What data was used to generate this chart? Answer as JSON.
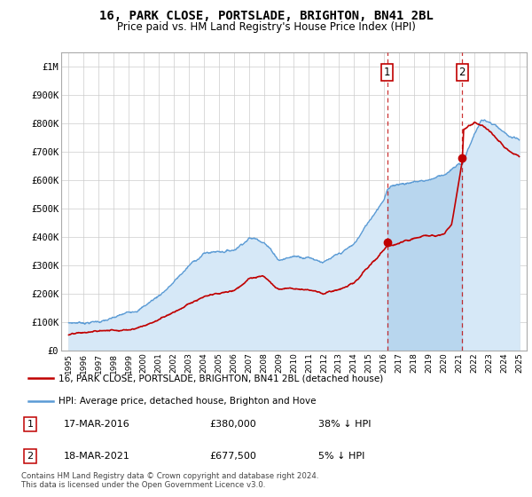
{
  "title": "16, PARK CLOSE, PORTSLADE, BRIGHTON, BN41 2BL",
  "subtitle": "Price paid vs. HM Land Registry's House Price Index (HPI)",
  "ylim": [
    0,
    1050000
  ],
  "yticks": [
    0,
    100000,
    200000,
    300000,
    400000,
    500000,
    600000,
    700000,
    800000,
    900000,
    1000000
  ],
  "ytick_labels": [
    "£0",
    "£100K",
    "£200K",
    "£300K",
    "£400K",
    "£500K",
    "£600K",
    "£700K",
    "£800K",
    "£900K",
    "£1M"
  ],
  "hpi_color": "#5b9bd5",
  "hpi_fill_color": "#d6e8f7",
  "price_color": "#c00000",
  "marker1_date": 2016.21,
  "marker1_price": 380000,
  "marker1_label": "17-MAR-2016",
  "marker1_amount": "£380,000",
  "marker1_pct": "38% ↓ HPI",
  "marker2_date": 2021.21,
  "marker2_price": 677500,
  "marker2_label": "18-MAR-2021",
  "marker2_amount": "£677,500",
  "marker2_pct": "5% ↓ HPI",
  "footer": "Contains HM Land Registry data © Crown copyright and database right 2024.\nThis data is licensed under the Open Government Licence v3.0.",
  "legend_price": "16, PARK CLOSE, PORTSLADE, BRIGHTON, BN41 2BL (detached house)",
  "legend_hpi": "HPI: Average price, detached house, Brighton and Hove",
  "background_color": "#ffffff",
  "grid_color": "#cccccc",
  "hpi_key_years": [
    1995,
    1996,
    1997,
    1998,
    1999,
    2000,
    2001,
    2002,
    2003,
    2004,
    2005,
    2006,
    2007,
    2008,
    2009,
    2010,
    2011,
    2012,
    2013,
    2014,
    2015,
    2016,
    2016.21,
    2017,
    2018,
    2019,
    2020,
    2021,
    2021.21,
    2022,
    2022.5,
    2023,
    2023.5,
    2024,
    2024.5,
    2025
  ],
  "hpi_key_vals": [
    95000,
    100000,
    107000,
    115000,
    130000,
    160000,
    200000,
    250000,
    305000,
    350000,
    360000,
    370000,
    420000,
    415000,
    355000,
    370000,
    375000,
    365000,
    380000,
    410000,
    490000,
    580000,
    612903,
    635000,
    645000,
    655000,
    680000,
    710000,
    713158,
    820000,
    870000,
    860000,
    840000,
    810000,
    790000,
    775000
  ],
  "price_key_years": [
    1995,
    1996,
    1997,
    1998,
    1999,
    2000,
    2001,
    2002,
    2003,
    2004,
    2005,
    2006,
    2007,
    2008,
    2009,
    2010,
    2011,
    2012,
    2013,
    2014,
    2015,
    2016,
    2016.21,
    2017,
    2018,
    2019,
    2020,
    2020.5,
    2021.21,
    2021.3,
    2022,
    2022.5,
    2023,
    2023.5,
    2024,
    2024.5,
    2025
  ],
  "price_key_vals": [
    55000,
    57000,
    62000,
    67000,
    75000,
    93000,
    115000,
    148000,
    180000,
    200000,
    205000,
    215000,
    260000,
    265000,
    225000,
    230000,
    235000,
    225000,
    235000,
    255000,
    310000,
    365000,
    380000,
    390000,
    400000,
    405000,
    415000,
    450000,
    677500,
    790000,
    820000,
    810000,
    790000,
    760000,
    730000,
    710000,
    700000
  ],
  "xlim_left": 1994.5,
  "xlim_right": 2025.5
}
